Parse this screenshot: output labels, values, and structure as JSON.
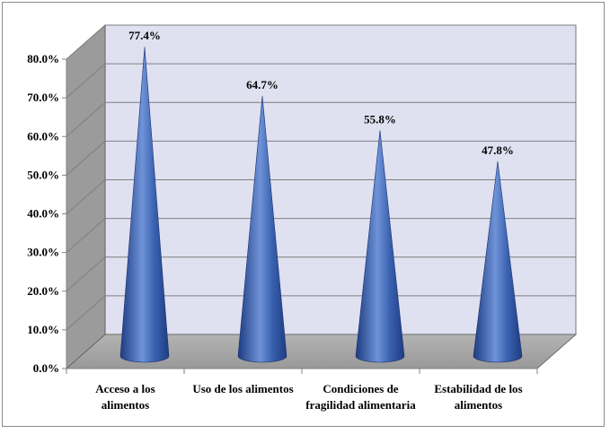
{
  "chart_data": {
    "type": "bar",
    "style": "3d-cone",
    "categories": [
      [
        "Acceso a los",
        "alimentos"
      ],
      [
        "Uso de los alimentos"
      ],
      [
        "Condiciones de",
        "fragilidad alimentaria"
      ],
      [
        "Estabilidad de los",
        "alimentos"
      ]
    ],
    "values": [
      77.4,
      64.7,
      55.8,
      47.8
    ],
    "data_labels": [
      "77.4%",
      "64.7%",
      "55.8%",
      "47.8%"
    ],
    "y_ticks": [
      "0.0%",
      "10.0%",
      "20.0%",
      "30.0%",
      "40.0%",
      "50.0%",
      "60.0%",
      "70.0%",
      "80.0%"
    ],
    "ylim": [
      0,
      80
    ],
    "grid": true,
    "legend": "none",
    "colors": {
      "cone": "#3a62b0",
      "cone_dark": "#1e3c82",
      "cone_light": "#6f93d8",
      "back_wall": "#dfe1f1",
      "side_wall": "#9b9b9b",
      "floor": "#a6a6a6",
      "grid": "#7f7f7f"
    }
  }
}
